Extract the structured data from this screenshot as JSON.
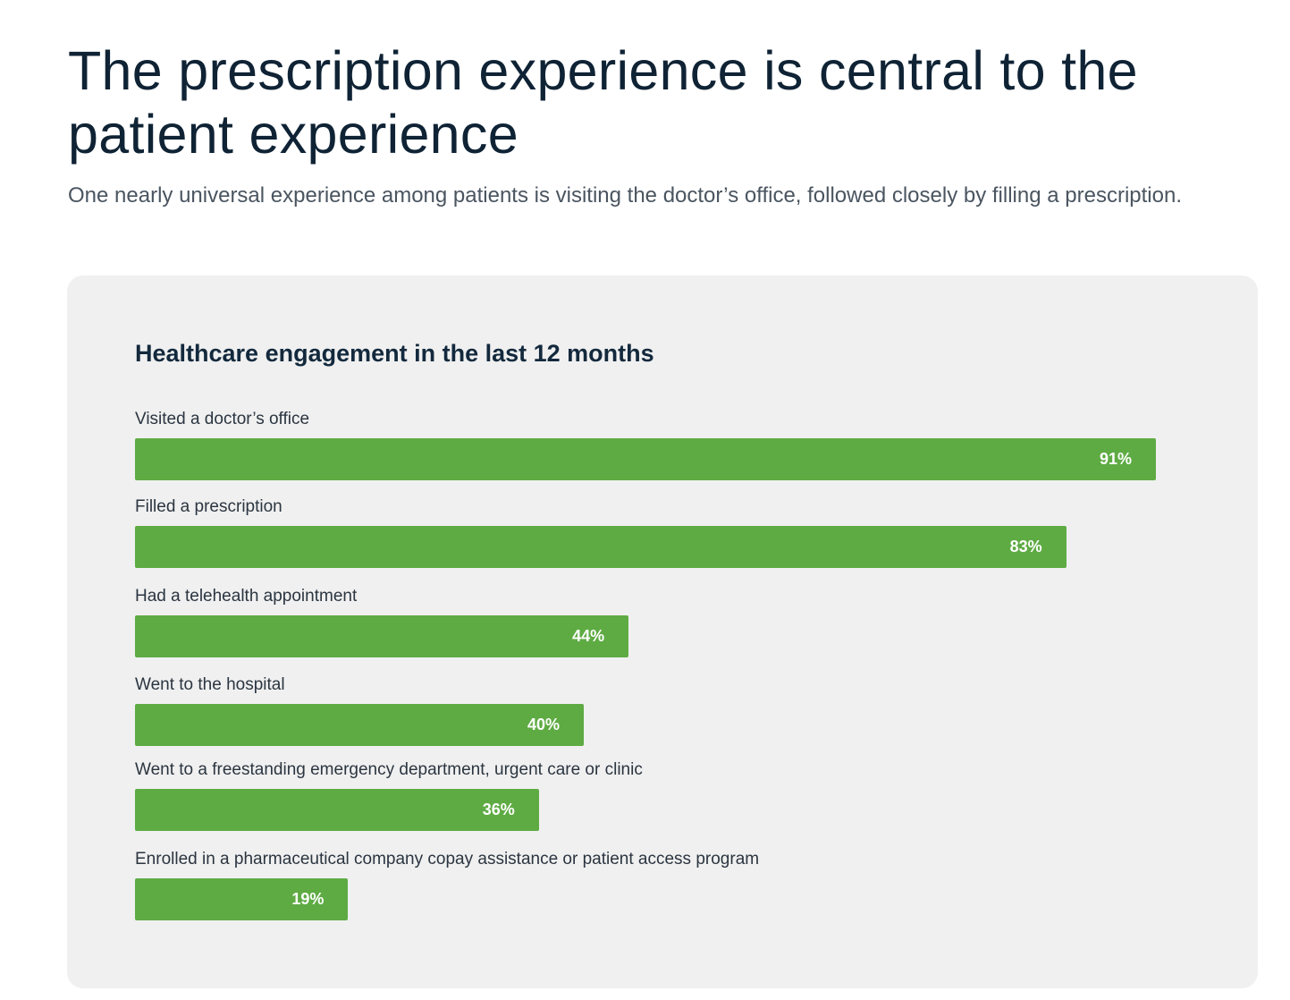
{
  "header": {
    "title": "The prescription experience is central to the patient experience",
    "subtitle": "One nearly universal experience among patients is visiting the doctor’s office, followed closely by filling a prescription."
  },
  "chart_data": {
    "type": "bar",
    "orientation": "horizontal",
    "title": "Healthcare engagement in the last 12 months",
    "bar_color": "#5eab43",
    "categories": [
      "Visited a doctor’s office",
      "Filled a prescription",
      "Had a telehealth appointment",
      "Went to the hospital",
      "Went to a freestanding emergency department, urgent care or clinic",
      "Enrolled in a pharmaceutical company copay assistance or patient access program"
    ],
    "values": [
      91,
      83,
      44,
      40,
      36,
      19
    ],
    "labels": [
      "91%",
      "83%",
      "44%",
      "40%",
      "36%",
      "19%"
    ],
    "xlim": [
      0,
      100
    ]
  }
}
